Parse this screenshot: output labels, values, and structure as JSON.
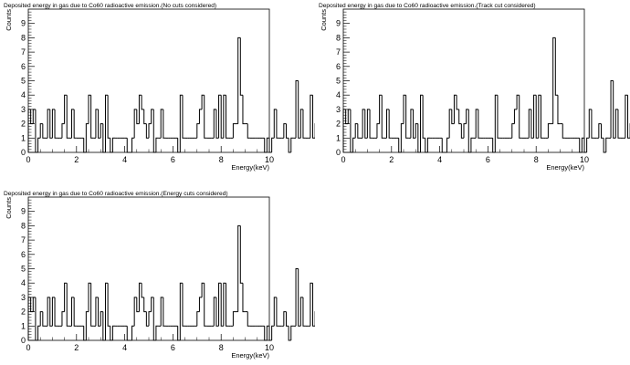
{
  "chart_data": [
    {
      "type": "histogram",
      "title": "Deposited energy in gas due to Co60 radioactive emission.(No cuts considered)",
      "xlabel": "Energy(keV)",
      "ylabel": "Counts",
      "xlim": [
        0,
        10
      ],
      "ylim": [
        0,
        10
      ],
      "xticks": [
        0,
        2,
        4,
        6,
        8,
        10
      ],
      "yticks": [
        0,
        1,
        2,
        3,
        4,
        5,
        6,
        7,
        8,
        9
      ],
      "bin_width": 0.1,
      "legend": "none",
      "grid": false,
      "values": [
        3,
        2,
        3,
        0,
        1,
        2,
        1,
        1,
        3,
        1,
        3,
        1,
        1,
        1,
        2,
        4,
        1,
        1,
        3,
        1,
        1,
        1,
        1,
        0,
        2,
        4,
        1,
        1,
        3,
        1,
        2,
        0,
        4,
        1,
        0,
        1,
        1,
        1,
        1,
        1,
        1,
        0,
        0,
        1,
        3,
        2,
        4,
        3,
        2,
        1,
        2,
        3,
        0,
        1,
        1,
        3,
        1,
        1,
        1,
        1,
        1,
        1,
        0,
        4,
        1,
        1,
        1,
        1,
        1,
        1,
        2,
        3,
        4,
        1,
        1,
        1,
        1,
        3,
        1,
        4,
        1,
        4,
        1,
        1,
        1,
        2,
        2,
        8,
        4,
        2,
        2,
        1,
        1,
        1,
        1,
        1,
        1,
        1,
        0,
        1,
        0,
        1,
        3,
        1,
        1,
        1,
        2,
        1,
        0,
        1,
        1,
        5,
        1,
        3,
        1,
        1,
        1,
        4,
        1,
        2,
        1,
        1,
        2,
        3,
        1,
        2,
        1,
        1,
        1,
        3,
        3,
        2,
        1,
        2,
        1,
        3,
        1,
        2,
        1,
        1,
        1,
        2,
        1,
        0,
        1,
        2,
        1,
        1,
        2,
        1,
        1,
        1,
        2,
        1,
        4,
        1,
        1,
        3,
        1,
        1,
        1,
        1,
        0,
        1,
        2,
        1,
        1,
        2,
        3,
        3,
        1,
        1,
        1,
        1,
        2,
        2,
        0,
        1,
        1,
        1,
        1,
        1,
        1,
        3,
        2,
        1,
        2,
        3,
        4,
        1,
        1,
        1,
        1,
        1,
        1,
        1,
        2,
        2,
        4,
        1,
        1,
        1,
        3,
        1,
        1,
        2,
        3,
        2,
        1,
        4,
        3,
        1,
        1,
        2,
        1,
        1,
        1,
        1,
        1,
        1,
        3,
        1,
        1,
        4,
        3,
        2,
        1,
        1,
        1,
        1,
        1,
        1,
        3,
        1,
        1,
        1,
        2,
        1,
        1,
        3,
        1,
        1,
        2,
        3,
        3,
        1,
        1,
        1,
        1,
        1,
        4,
        1,
        3,
        1,
        2,
        1,
        1,
        2,
        2,
        1,
        1,
        1,
        3,
        8,
        2,
        1,
        1,
        1,
        2,
        1,
        1,
        1,
        1,
        1,
        3,
        1,
        2,
        5,
        3,
        4,
        2,
        1,
        2,
        1,
        1,
        1,
        1,
        1,
        1,
        3
      ]
    },
    {
      "type": "histogram",
      "title": "Deposited energy in gas due to Co60 radioactive emission.(Track cut considered)",
      "xlabel": "Energy(keV)",
      "ylabel": "Counts",
      "xlim": [
        0,
        10
      ],
      "ylim": [
        0,
        10
      ],
      "xticks": [
        0,
        2,
        4,
        6,
        8,
        10
      ],
      "yticks": [
        0,
        1,
        2,
        3,
        4,
        5,
        6,
        7,
        8,
        9
      ],
      "bin_width": 0.1,
      "legend": "none",
      "grid": false,
      "values": [
        3,
        2,
        3,
        0,
        1,
        2,
        1,
        1,
        3,
        1,
        3,
        1,
        1,
        1,
        2,
        4,
        1,
        1,
        3,
        1,
        1,
        1,
        1,
        0,
        2,
        4,
        1,
        1,
        3,
        1,
        2,
        0,
        4,
        1,
        0,
        1,
        1,
        1,
        1,
        1,
        1,
        0,
        0,
        1,
        3,
        2,
        4,
        3,
        2,
        1,
        2,
        3,
        0,
        1,
        1,
        3,
        1,
        1,
        1,
        1,
        1,
        1,
        0,
        4,
        1,
        1,
        1,
        1,
        1,
        1,
        2,
        3,
        4,
        1,
        1,
        1,
        1,
        3,
        1,
        4,
        1,
        4,
        1,
        1,
        1,
        2,
        2,
        8,
        4,
        2,
        2,
        1,
        1,
        1,
        1,
        1,
        1,
        1,
        0,
        1,
        0,
        1,
        3,
        1,
        1,
        1,
        2,
        1,
        0,
        1,
        1,
        5,
        1,
        3,
        1,
        1,
        1,
        4,
        1,
        2,
        1,
        1,
        2,
        3,
        1,
        2,
        1,
        1,
        1,
        3,
        3,
        2,
        1,
        2,
        1,
        3,
        1,
        2,
        1,
        1,
        1,
        2,
        1,
        0,
        1,
        2,
        1,
        1,
        2,
        1,
        1,
        1,
        2,
        1,
        4,
        1,
        1,
        3,
        1,
        1,
        1,
        1,
        0,
        1,
        2,
        1,
        1,
        2,
        3,
        3,
        1,
        1,
        1,
        1,
        2,
        2,
        0,
        1,
        1,
        1,
        1,
        1,
        1,
        3,
        2,
        1,
        2,
        3,
        4,
        1,
        1,
        1,
        1,
        1,
        1,
        1,
        2,
        2,
        4,
        1,
        1,
        1,
        3,
        1,
        1,
        2,
        3,
        2,
        1,
        4,
        3,
        1,
        1,
        2,
        1,
        1,
        1,
        1,
        1,
        1,
        3,
        1,
        1,
        4,
        3,
        2,
        1,
        1,
        1,
        1,
        1,
        1,
        3,
        1,
        1,
        1,
        2,
        1,
        1,
        3,
        1,
        1,
        2,
        3,
        3,
        1,
        1,
        1,
        1,
        1,
        4,
        1,
        3,
        1,
        2,
        1,
        1,
        2,
        2,
        1,
        1,
        1,
        3,
        8,
        2,
        1,
        1,
        1,
        2,
        1,
        1,
        1,
        1,
        1,
        3,
        1,
        2,
        5,
        3,
        4,
        2,
        1,
        2,
        1,
        1,
        1,
        1,
        1,
        1,
        3
      ]
    },
    {
      "type": "histogram",
      "title": "Deposited energy in gas due to Co60 radioactive emission.(Energy cuts considered)",
      "xlabel": "Energy(keV)",
      "ylabel": "Counts",
      "xlim": [
        0,
        10
      ],
      "ylim": [
        0,
        10
      ],
      "xticks": [
        0,
        2,
        4,
        6,
        8,
        10
      ],
      "yticks": [
        0,
        1,
        2,
        3,
        4,
        5,
        6,
        7,
        8,
        9
      ],
      "bin_width": 0.1,
      "legend": "none",
      "grid": false,
      "values": [
        3,
        2,
        3,
        0,
        1,
        2,
        1,
        1,
        3,
        1,
        3,
        1,
        1,
        1,
        2,
        4,
        1,
        1,
        3,
        1,
        1,
        1,
        1,
        0,
        2,
        4,
        1,
        1,
        3,
        1,
        2,
        0,
        4,
        1,
        0,
        1,
        1,
        1,
        1,
        1,
        1,
        0,
        0,
        1,
        3,
        2,
        4,
        3,
        2,
        1,
        2,
        3,
        0,
        1,
        1,
        3,
        1,
        1,
        1,
        1,
        1,
        1,
        0,
        4,
        1,
        1,
        1,
        1,
        1,
        1,
        2,
        3,
        4,
        1,
        1,
        1,
        1,
        3,
        1,
        4,
        1,
        4,
        1,
        1,
        1,
        2,
        2,
        8,
        4,
        2,
        2,
        1,
        1,
        1,
        1,
        1,
        1,
        1,
        0,
        1,
        0,
        1,
        3,
        1,
        1,
        1,
        2,
        1,
        0,
        1,
        1,
        5,
        1,
        3,
        1,
        1,
        1,
        4,
        1,
        2,
        1,
        1,
        2,
        3,
        1,
        2,
        1,
        1,
        1,
        3,
        3,
        2,
        1,
        2,
        1,
        3,
        1,
        2,
        1,
        1,
        1,
        2,
        1,
        0,
        1,
        2,
        1,
        1,
        2,
        1,
        1,
        1,
        2,
        1,
        4,
        1,
        1,
        3,
        1,
        1,
        1,
        1,
        0,
        1,
        2,
        1,
        1,
        2,
        3,
        3,
        1,
        1,
        1,
        1,
        2,
        2,
        0,
        1,
        1,
        1,
        1,
        1,
        1,
        3,
        2,
        1,
        2,
        3,
        4,
        1,
        1,
        1,
        1,
        1,
        1,
        1,
        2,
        2,
        4,
        1,
        1,
        1,
        3,
        1,
        1,
        2,
        3,
        2,
        1,
        4,
        3,
        1,
        1,
        2,
        1,
        1,
        1,
        1,
        1,
        1,
        3,
        1,
        1,
        4,
        3,
        2,
        1,
        1,
        1,
        1,
        1,
        1,
        3,
        1,
        1,
        1,
        2,
        1,
        1,
        3,
        1,
        1,
        2,
        3,
        3,
        1,
        1,
        1,
        1,
        1,
        4,
        1,
        3,
        1,
        2,
        1,
        1,
        2,
        2,
        1,
        1,
        1,
        3,
        8,
        2,
        1,
        1,
        1,
        2,
        1,
        1,
        1,
        1,
        1,
        3,
        1,
        2,
        5,
        3,
        4,
        2,
        1,
        2,
        1,
        1,
        1,
        1,
        1,
        1,
        3
      ]
    }
  ]
}
